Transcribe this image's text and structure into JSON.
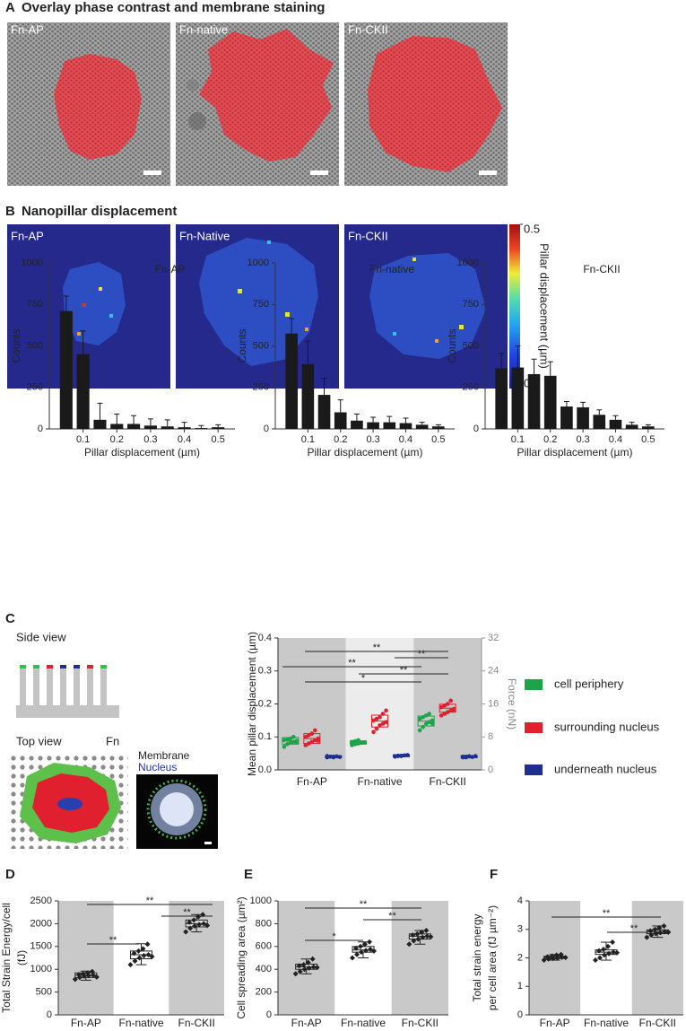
{
  "panel_a": {
    "label": "A",
    "title": "Overlay phase contrast and membrane staining",
    "images": [
      "Fn-AP",
      "Fn-native",
      "Fn-CKII"
    ]
  },
  "panel_b": {
    "label": "B",
    "title": "Nanopillar displacement",
    "images": [
      "Fn-AP",
      "Fn-Native",
      "Fn-CKII"
    ],
    "colorbar": {
      "label": "Pillar displacement (µm)",
      "lim": [
        0,
        0.5
      ],
      "ticks": [
        0,
        0.5
      ]
    }
  },
  "panel_c": {
    "label": "C",
    "side_view": "Side view",
    "top_view": "Top view",
    "fn": "Fn",
    "membrane": "Membrane",
    "nucleus": "Nucleus"
  },
  "chart_data": [
    {
      "type": "bar",
      "title": "Fn-AP",
      "xlabel": "Pillar displacement (µm)",
      "ylabel": "Counts",
      "color": "#1a1a1a",
      "x": [
        0.05,
        0.1,
        0.15,
        0.2,
        0.25,
        0.3,
        0.35,
        0.4,
        0.45,
        0.5
      ],
      "values": [
        710,
        450,
        55,
        30,
        30,
        20,
        15,
        10,
        5,
        10
      ],
      "errors": [
        90,
        140,
        100,
        60,
        50,
        40,
        40,
        30,
        15,
        15
      ],
      "xlim": [
        0,
        0.55
      ],
      "xticks": [
        0.1,
        0.2,
        0.3,
        0.4,
        0.5
      ],
      "ylim": [
        0,
        1000
      ],
      "yticks": [
        0,
        250,
        500,
        750,
        1000
      ]
    },
    {
      "type": "bar",
      "title": "Fn-native",
      "xlabel": "Pillar displacement (µm)",
      "ylabel": "Counts",
      "color": "#1a1a1a",
      "x": [
        0.05,
        0.1,
        0.15,
        0.2,
        0.25,
        0.3,
        0.35,
        0.4,
        0.45,
        0.5
      ],
      "values": [
        575,
        390,
        205,
        100,
        50,
        40,
        40,
        35,
        25,
        15
      ],
      "errors": [
        90,
        140,
        100,
        75,
        40,
        30,
        35,
        30,
        15,
        10
      ],
      "xlim": [
        0,
        0.55
      ],
      "xticks": [
        0.1,
        0.2,
        0.3,
        0.4,
        0.5
      ],
      "ylim": [
        0,
        1000
      ],
      "yticks": [
        0,
        250,
        500,
        750,
        1000
      ]
    },
    {
      "type": "bar",
      "title": "Fn-CKII",
      "xlabel": "Pillar displacement (µm)",
      "ylabel": "Counts",
      "color": "#1a1a1a",
      "x": [
        0.05,
        0.1,
        0.15,
        0.2,
        0.25,
        0.3,
        0.35,
        0.4,
        0.45,
        0.5
      ],
      "values": [
        365,
        370,
        330,
        320,
        135,
        130,
        85,
        55,
        25,
        15
      ],
      "errors": [
        90,
        130,
        90,
        85,
        30,
        30,
        30,
        25,
        15,
        10
      ],
      "xlim": [
        0,
        0.55
      ],
      "xticks": [
        0.1,
        0.2,
        0.3,
        0.4,
        0.5
      ],
      "ylim": [
        0,
        1000
      ],
      "yticks": [
        0,
        250,
        500,
        750,
        1000
      ]
    },
    {
      "type": "scatter",
      "ylabel": "Mean pillar displacement (µm)",
      "y2label": "Force (nN)",
      "categories": [
        "Fn-AP",
        "Fn-native",
        "Fn-CKII"
      ],
      "ylim": [
        0,
        0.4
      ],
      "yticks": [
        {
          "value": 0,
          "label": "0.0"
        },
        0.1,
        0.2,
        0.3,
        0.4
      ],
      "y2lim": [
        0,
        32
      ],
      "y2ticks": [
        0,
        8,
        16,
        24,
        32
      ],
      "significance": [
        "**",
        "**",
        "**",
        "**",
        "*"
      ],
      "series": [
        {
          "name": "cell periphery",
          "color": "#1fa34a",
          "values": [
            0.088,
            0.083,
            0.148
          ],
          "errors": [
            0.01,
            0.005,
            0.015
          ],
          "points": [
            [
              0.07,
              0.078,
              0.082,
              0.085,
              0.088,
              0.09,
              0.092,
              0.095,
              0.1,
              0.083
            ],
            [
              0.075,
              0.078,
              0.08,
              0.082,
              0.084,
              0.085,
              0.087,
              0.09,
              0.083
            ],
            [
              0.12,
              0.13,
              0.14,
              0.145,
              0.15,
              0.155,
              0.16,
              0.165,
              0.17,
              0.14
            ]
          ]
        },
        {
          "name": "surrounding nucleus",
          "color": "#e0202e",
          "values": [
            0.095,
            0.148,
            0.187
          ],
          "errors": [
            0.015,
            0.018,
            0.012
          ],
          "points": [
            [
              0.075,
              0.08,
              0.085,
              0.09,
              0.095,
              0.1,
              0.105,
              0.11,
              0.12,
              0.088
            ],
            [
              0.115,
              0.125,
              0.135,
              0.14,
              0.145,
              0.15,
              0.155,
              0.16,
              0.17,
              0.18
            ],
            [
              0.165,
              0.17,
              0.175,
              0.18,
              0.185,
              0.19,
              0.195,
              0.2,
              0.21,
              0.18
            ]
          ]
        },
        {
          "name": "underneath nucleus",
          "color": "#1f2f8f",
          "values": [
            0.04,
            0.043,
            0.04
          ],
          "errors": [
            0.003,
            0.003,
            0.003
          ],
          "points": [
            [
              0.038,
              0.04,
              0.04,
              0.041,
              0.039,
              0.042,
              0.04,
              0.038
            ],
            [
              0.04,
              0.042,
              0.043,
              0.044,
              0.045,
              0.041,
              0.043,
              0.042
            ],
            [
              0.038,
              0.04,
              0.041,
              0.039,
              0.042,
              0.04,
              0.038,
              0.041
            ]
          ]
        }
      ]
    },
    {
      "type": "box",
      "panel": "D",
      "ylabel": [
        "Total Strain Energy/cell",
        "(fJ)"
      ],
      "categories": [
        "Fn-AP",
        "Fn-native",
        "Fn-CKII"
      ],
      "ylim": [
        0,
        2500
      ],
      "yticks": [
        0,
        500,
        1000,
        1500,
        2000,
        2500
      ],
      "significance": [
        "**",
        "**",
        "**"
      ],
      "boxes": [
        {
          "whislo": 760,
          "q1": 820,
          "med": 870,
          "q3": 920,
          "whishi": 960,
          "points": [
            780,
            820,
            850,
            860,
            870,
            880,
            900,
            920,
            950,
            830
          ]
        },
        {
          "whislo": 1100,
          "q1": 1230,
          "med": 1320,
          "q3": 1400,
          "whishi": 1560,
          "points": [
            1100,
            1180,
            1250,
            1300,
            1320,
            1350,
            1400,
            1450,
            1550,
            1280
          ]
        },
        {
          "whislo": 1820,
          "q1": 1930,
          "med": 2000,
          "q3": 2080,
          "whishi": 2200,
          "points": [
            1820,
            1900,
            1950,
            1980,
            2000,
            2030,
            2080,
            2150,
            2200,
            1960
          ]
        }
      ]
    },
    {
      "type": "box",
      "panel": "E",
      "ylabel": [
        "Cell spreading area (µm²)"
      ],
      "categories": [
        "Fn-AP",
        "Fn-native",
        "Fn-CKII"
      ],
      "ylim": [
        0,
        1000
      ],
      "yticks": [
        0,
        200,
        400,
        600,
        800,
        1000
      ],
      "significance": [
        "**",
        "**",
        "*"
      ],
      "boxes": [
        {
          "whislo": 360,
          "q1": 400,
          "med": 420,
          "q3": 445,
          "whishi": 490,
          "points": [
            360,
            380,
            400,
            410,
            420,
            430,
            440,
            460,
            490,
            415
          ]
        },
        {
          "whislo": 500,
          "q1": 550,
          "med": 570,
          "q3": 600,
          "whishi": 640,
          "points": [
            500,
            530,
            550,
            565,
            575,
            585,
            600,
            620,
            640,
            560
          ]
        },
        {
          "whislo": 620,
          "q1": 665,
          "med": 690,
          "q3": 710,
          "whishi": 740,
          "points": [
            620,
            650,
            665,
            680,
            690,
            700,
            710,
            725,
            740,
            685
          ]
        }
      ]
    },
    {
      "type": "box",
      "panel": "F",
      "ylabel": [
        "Total strain energy",
        "per cell area (fJ µm⁻²)"
      ],
      "categories": [
        "Fn-AP",
        "Fn-native",
        "Fn-CKII"
      ],
      "ylim": [
        0,
        4
      ],
      "yticks": [
        0,
        1,
        2,
        3,
        4
      ],
      "significance": [
        "**",
        "**"
      ],
      "boxes": [
        {
          "whislo": 1.92,
          "q1": 1.98,
          "med": 2.02,
          "q3": 2.06,
          "whishi": 2.12,
          "points": [
            1.92,
            1.96,
            1.98,
            2.0,
            2.02,
            2.04,
            2.06,
            2.1,
            2.12,
            2.01
          ]
        },
        {
          "whislo": 1.92,
          "q1": 2.12,
          "med": 2.2,
          "q3": 2.28,
          "whishi": 2.55,
          "points": [
            1.92,
            2.0,
            2.1,
            2.15,
            2.2,
            2.25,
            2.3,
            2.4,
            2.55,
            2.18
          ]
        },
        {
          "whislo": 2.72,
          "q1": 2.85,
          "med": 2.92,
          "q3": 2.98,
          "whishi": 3.12,
          "points": [
            2.72,
            2.8,
            2.85,
            2.88,
            2.92,
            2.95,
            3.0,
            3.05,
            3.12,
            2.9
          ]
        }
      ]
    }
  ]
}
